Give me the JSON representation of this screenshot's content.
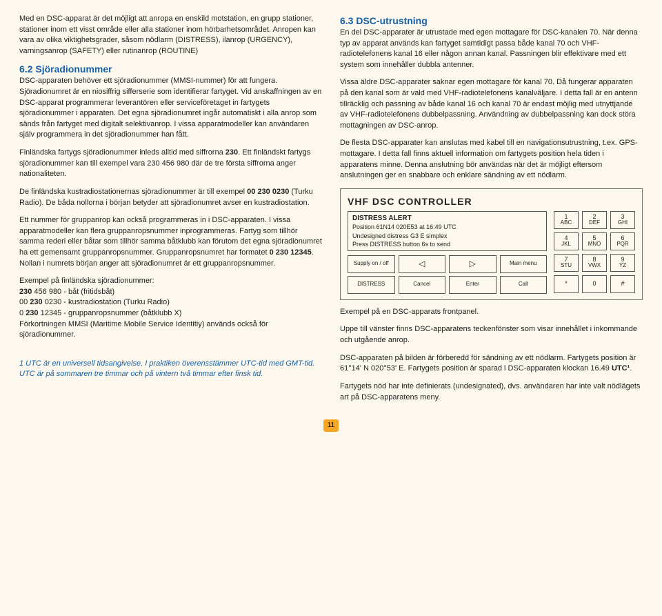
{
  "left": {
    "p1": "Med en DSC-apparat är det möjligt att anropa en enskild motstation, en grupp stationer, stationer inom ett visst område eller alla stationer inom hörbarhetsområdet. Anropen kan vara av olika viktighetsgrader, såsom nödlarm (DISTRESS), ilanrop (URGENCY), varningsanrop (SAFETY) eller rutinanrop (ROUTINE)",
    "h62": "6.2 Sjöradionummer",
    "p2": "DSC-apparaten behöver ett sjöradionummer (MMSI-nummer) för att fungera. Sjöradionumret är en niosiffrig sifferserie som identifierar fartyget. Vid anskaffningen av en DSC-apparat programmerar leverantören eller serviceföretaget in fartygets sjöradionummer i apparaten. Det egna sjöradionumret ingår automatiskt i alla anrop som sänds från fartyget med digitalt selektivanrop. I vissa apparatmodeller kan användaren själv programmera in det sjöradionummer han fått.",
    "p3a": "Finländska fartygs sjöradionummer inleds alltid med siffrorna ",
    "p3b": "230",
    "p3c": ". Ett finländskt fartygs sjöradionummer kan till exempel vara 230 456 980 där de tre första siffrorna anger nationaliteten.",
    "p4a": "De finländska kustradiostationernas sjöradionummer är till exempel ",
    "p4b": "00 230 0230",
    "p4c": " (Turku Radio). De båda nollorna i början betyder att sjöradionumret avser en kustradiostation.",
    "p5a": "Ett nummer för gruppanrop kan också programmeras in i DSC-apparaten. I vissa apparatmodeller kan flera gruppanropsnummer inprogrammeras. Fartyg som tillhör samma rederi eller båtar som tillhör samma båtklubb kan förutom det egna sjöradionumret ha ett gemensamt gruppanropsnummer. Gruppanropsnumret har formatet ",
    "p5b": "0 230 12345",
    "p5c": ". Nollan i numrets början anger att sjöradionumret är ett gruppanropsnummer.",
    "ex_h": "Exempel på finländska sjöradionummer:",
    "ex1a": "230",
    "ex1b": " 456 980 - båt (fritidsbåt)",
    "ex2a": "00 ",
    "ex2b": "230",
    "ex2c": " 0230 - kustradiostation (Turku Radio)",
    "ex3a": "0 ",
    "ex3b": "230",
    "ex3c": " 12345 - gruppanropsnummer (båtklubb X)",
    "ex4": "Förkortningen MMSI (Maritime Mobile Service Identitiy) används också för sjöradionummer.",
    "foot": "1 UTC är en universell tidsangivelse. I praktiken överensstämmer UTC-tid med GMT-tid. UTC är på sommaren tre timmar och på vintern två timmar efter finsk tid."
  },
  "right": {
    "h63": "6.3 DSC-utrustning",
    "p1": "En del DSC-apparater är utrustade med egen mottagare för DSC-kanalen 70. När denna typ av apparat används kan fartyget samtidigt passa både kanal 70 och VHF-radiotelefonens kanal 16 eller någon annan kanal. Passningen blir effektivare med ett system som innehåller dubbla antenner.",
    "p2": "Vissa äldre DSC-apparater saknar egen mottagare för kanal 70. Då fungerar apparaten på den kanal som är vald med VHF-radiotelefonens kanalväljare. I detta fall är en antenn tillräcklig och passning av både kanal 16 och kanal 70 är endast möjlig med utnyttjande av VHF-radiotelefonens dubbelpassning. Användning av dubbelpassning kan dock störa mottagningen av DSC-anrop.",
    "p3": "De flesta DSC-apparater kan anslutas med kabel till en navigationsutrustning, t.ex. GPS-mottagare. I detta fall finns aktuell information om fartygets position hela tiden i apparatens minne. Denna anslutning bör användas när det är möjligt eftersom anslutningen ger en snabbare och enklare sändning av ett nödlarm.",
    "cap1": "Exempel på en DSC-apparats frontpanel.",
    "cap2": "Uppe till vänster finns DSC-apparatens teckenfönster som visar innehållet i inkommande och utgående anrop.",
    "cap3a": "DSC-apparaten på bilden är förberedd för sändning av ett nödlarm. Fartygets position är 61°14' N 020°53' E. Fartygets position är sparad i DSC-apparaten klockan 16.49 ",
    "cap3b": "UTC¹",
    "cap3c": ".",
    "cap4": "Fartygets nöd har inte definierats (undesignated), dvs. användaren har inte valt nödlägets art på DSC-apparatens meny."
  },
  "controller": {
    "title": "VHF  DSC  CONTROLLER",
    "lcd_title": "DISTRESS ALERT",
    "lcd1": "Position 61N14 020E53 at 16:49 UTC",
    "lcd2": "Undesigned distress  G3 E simplex",
    "lcd3": "Press DISTRESS button 6s to send",
    "b_supply": "Supply on / off",
    "b_left": "◁",
    "b_right": "▷",
    "b_main": "Main menu",
    "b_distress": "DISTRESS",
    "b_cancel": "Cancel",
    "b_enter": "Enter",
    "b_call": "Call",
    "keys": [
      {
        "n": "1",
        "l": "ABC"
      },
      {
        "n": "2",
        "l": "DEF"
      },
      {
        "n": "3",
        "l": "GHI"
      },
      {
        "n": "4",
        "l": "JKL"
      },
      {
        "n": "5",
        "l": "MNO"
      },
      {
        "n": "6",
        "l": "PQR"
      },
      {
        "n": "7",
        "l": "STU"
      },
      {
        "n": "8",
        "l": "VWX"
      },
      {
        "n": "9",
        "l": "YZ"
      },
      {
        "n": "*",
        "l": ""
      },
      {
        "n": "0",
        "l": ""
      },
      {
        "n": "#",
        "l": ""
      }
    ]
  },
  "pagenum": "11"
}
